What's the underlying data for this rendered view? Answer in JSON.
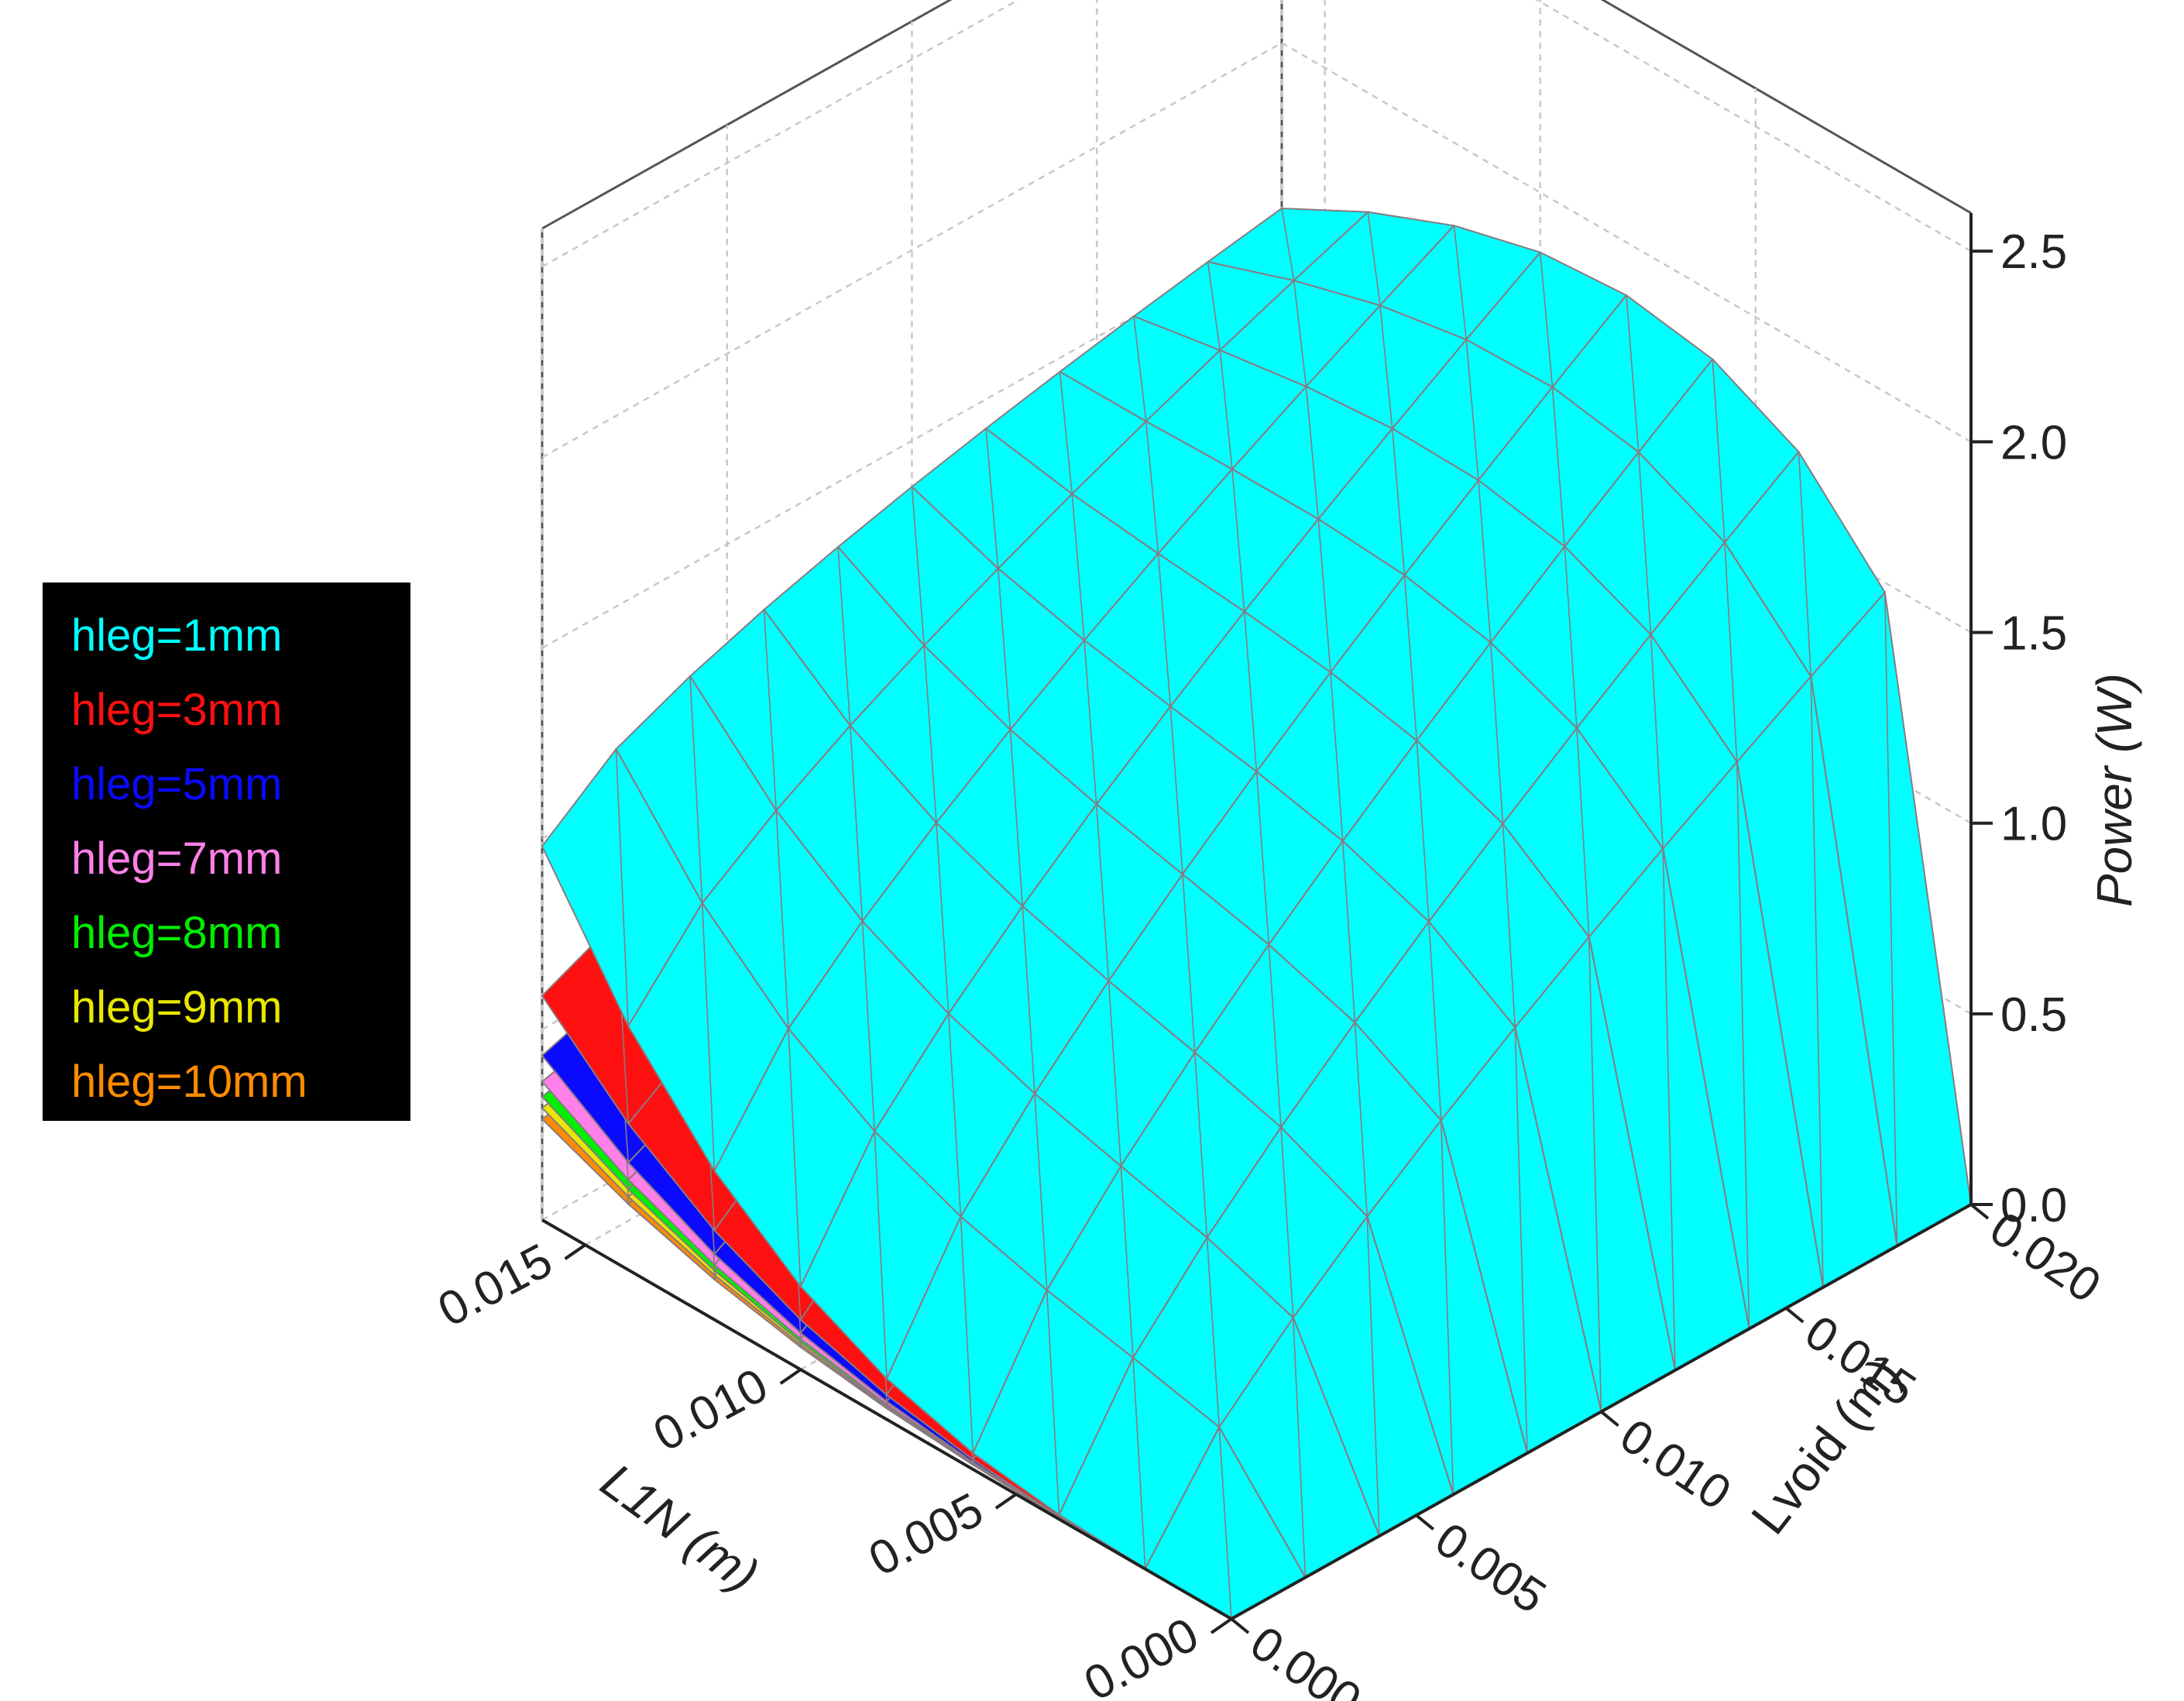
{
  "chart_data": {
    "type": "surface3d",
    "title": "",
    "xlabel": "Lvoid (m)",
    "ylabel": "L1N (m)",
    "zlabel": "Power (W)",
    "x_ticks": [
      "0.000",
      "0.005",
      "0.010",
      "0.015",
      "0.020"
    ],
    "y_ticks": [
      "0.000",
      "0.005",
      "0.010",
      "0.015"
    ],
    "z_ticks": [
      "0.0",
      "0.5",
      "1.0",
      "1.5",
      "2.0",
      "2.5"
    ],
    "xlim": [
      0,
      0.02
    ],
    "ylim": [
      0,
      0.016
    ],
    "zlim": [
      0,
      2.6
    ],
    "grid": true,
    "legend_position": "left",
    "legend_background": "#000000",
    "mesh_color": "#8a7a80",
    "series": [
      {
        "name": "hleg=1mm",
        "color": "#00ffff",
        "scale": 1.0
      },
      {
        "name": "hleg=3mm",
        "color": "#ff1010",
        "scale": 0.6
      },
      {
        "name": "hleg=5mm",
        "color": "#0a0aff",
        "scale": 0.44
      },
      {
        "name": "hleg=7mm",
        "color": "#ff80e8",
        "scale": 0.37
      },
      {
        "name": "hleg=8mm",
        "color": "#00ee00",
        "scale": 0.33
      },
      {
        "name": "hleg=9mm",
        "color": "#e8e800",
        "scale": 0.3
      },
      {
        "name": "hleg=10mm",
        "color": "#ff8c00",
        "scale": 0.27
      }
    ]
  }
}
